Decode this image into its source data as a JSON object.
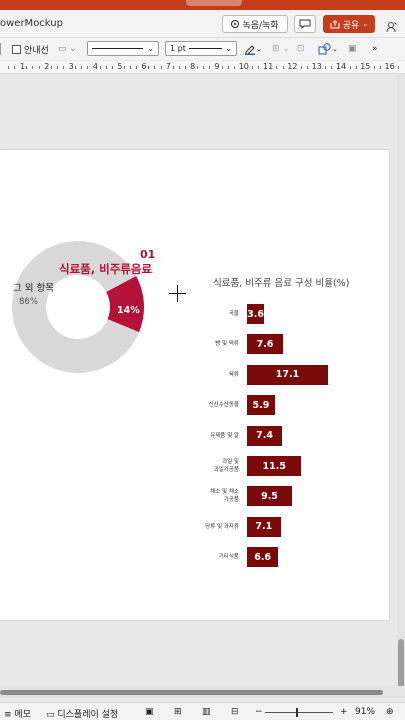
{
  "window": {
    "app_title": "owerMockup",
    "record_label": "녹음/녹화",
    "share_label": "공유",
    "share_icon": "share-icon",
    "comment_icon": "comment-icon",
    "person_icon": "person-icon"
  },
  "toolbar": {
    "gridline_label": "안내선",
    "line_style_value": "",
    "line_weight_value": "1 pt",
    "more_label": "»"
  },
  "ruler": {
    "marks": [
      "1",
      "2",
      "3",
      "4",
      "5",
      "6",
      "7",
      "8",
      "9",
      "10",
      "11",
      "12",
      "13",
      "14",
      "15",
      "16"
    ]
  },
  "slide": {
    "donut": {
      "number": "01",
      "title": "식료품, 비주류음료",
      "highlight_pct": "14%",
      "highlight_value": 14,
      "other_label": "그 외 항목",
      "other_pct": "86%",
      "colors": {
        "highlight": "#b5123a",
        "other": "#d9d9d9"
      }
    },
    "bar_chart_title": "식료품, 비주류 음료 구성 비율(%)"
  },
  "chart_data": [
    {
      "type": "pie",
      "labels": [
        "식료품, 비주류음료",
        "그 외 항목"
      ],
      "values": [
        14,
        86
      ],
      "colors": [
        "#b5123a",
        "#d9d9d9"
      ]
    },
    {
      "type": "bar",
      "title": "식료품, 비주류 음료 구성 비율(%)",
      "orientation": "horizontal",
      "categories": [
        "곡물",
        "빵 및 떡류",
        "육류",
        "신선수산동물",
        "유제품 및 알",
        "과일 및\n과일가공품",
        "채소 및 채소\n가공품",
        "당류 및 과자류",
        "기타식품"
      ],
      "values": [
        3.6,
        7.6,
        17.1,
        5.9,
        7.4,
        11.5,
        9.5,
        7.1,
        6.6
      ],
      "bar_color": "#7a0a0a"
    }
  ],
  "statusbar": {
    "notes_label": "메모",
    "display_label": "디스플레이 설정",
    "zoom_minus": "−",
    "zoom_plus": "+",
    "zoom_value": "91%"
  }
}
